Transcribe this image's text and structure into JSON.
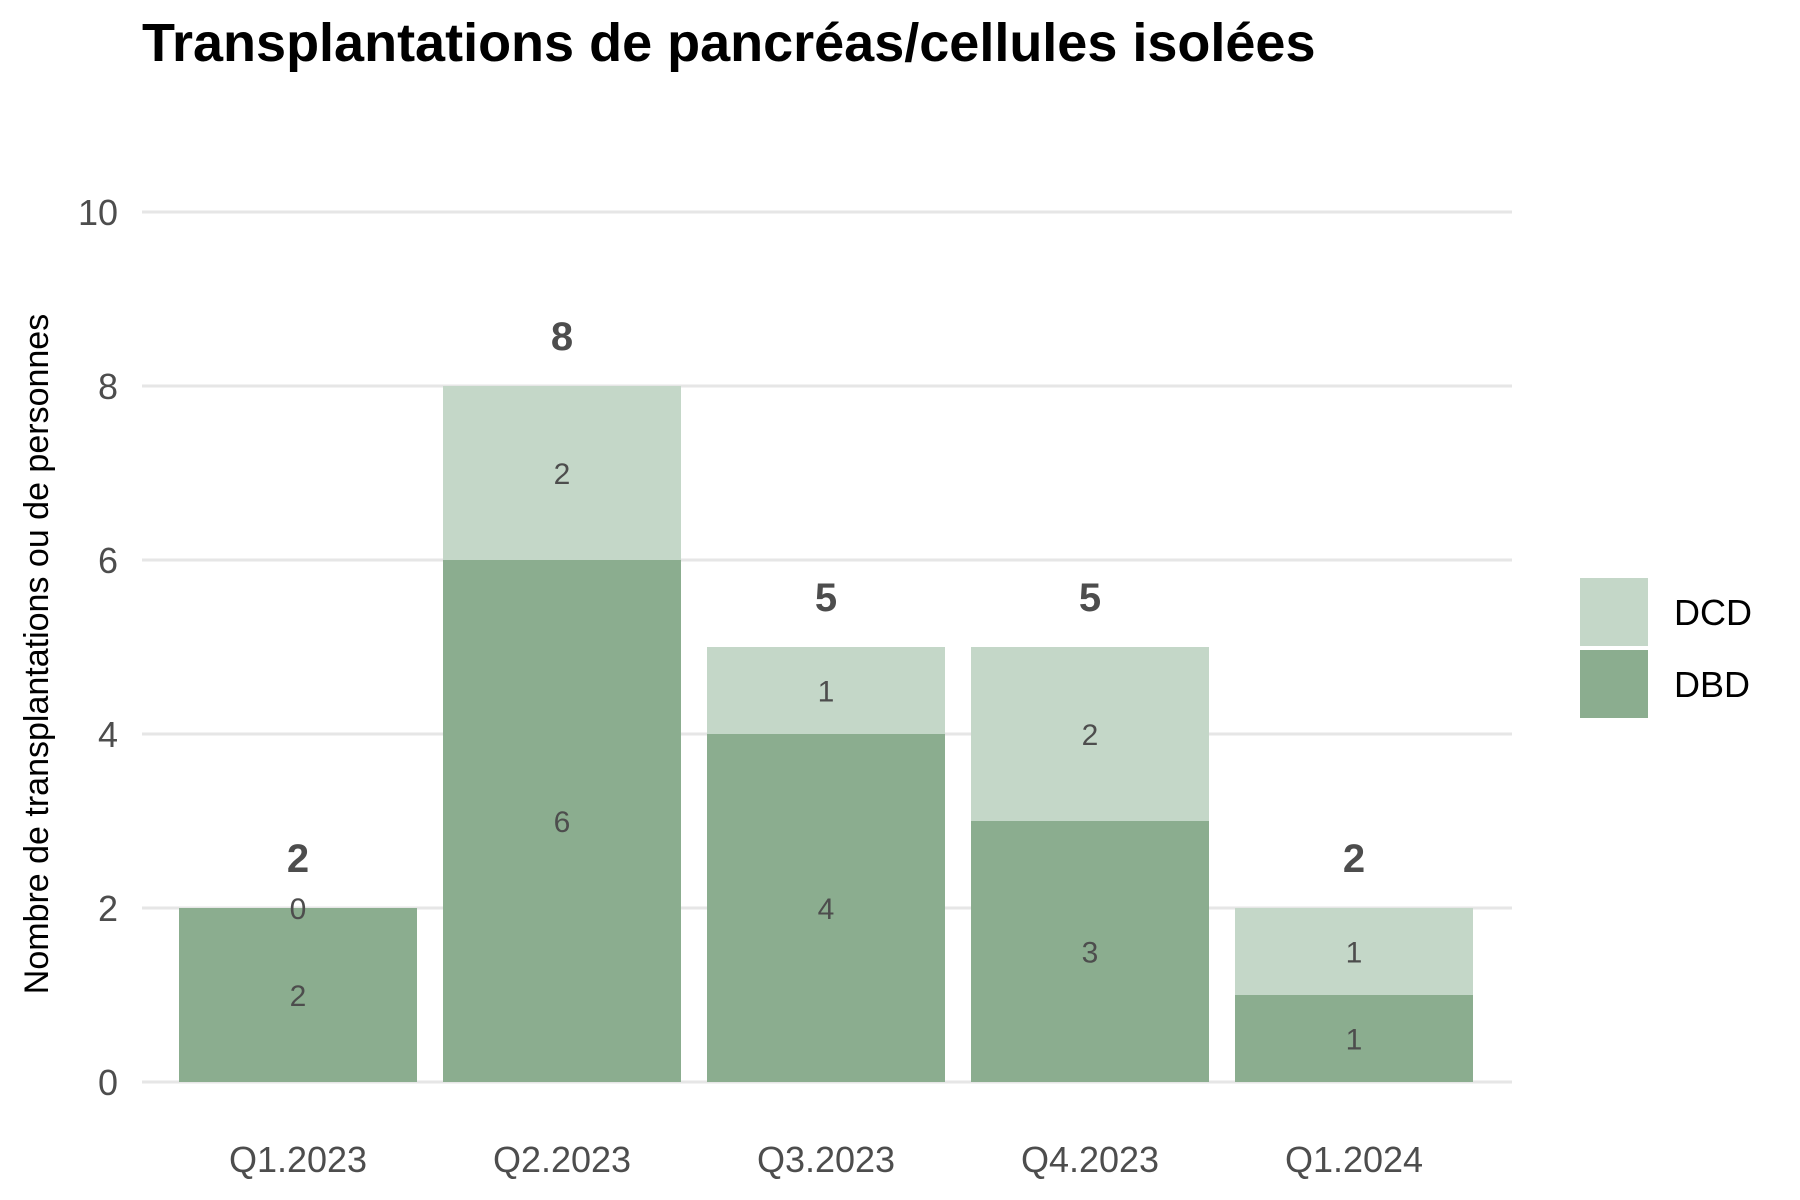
{
  "chart_data": {
    "type": "bar",
    "stacked": true,
    "title": "Transplantations de pancréas/cellules isolées",
    "xlabel": "",
    "ylabel": "Nombre de transplantations ou de personnes",
    "ylim": [
      0,
      10
    ],
    "yticks": [
      0,
      2,
      4,
      6,
      8,
      10
    ],
    "grid": true,
    "legend_position": "right",
    "categories": [
      "Q1.2023",
      "Q2.2023",
      "Q3.2023",
      "Q4.2023",
      "Q1.2024"
    ],
    "series": [
      {
        "name": "DBD",
        "values": [
          2,
          6,
          4,
          3,
          1
        ],
        "color": "#8bad8f"
      },
      {
        "name": "DCD",
        "values": [
          0,
          2,
          1,
          2,
          1
        ],
        "color": "#c4d7c8"
      }
    ],
    "totals": [
      2,
      8,
      5,
      5,
      2
    ],
    "legend": [
      {
        "name": "DCD",
        "color": "#c4d7c8"
      },
      {
        "name": "DBD",
        "color": "#8bad8f"
      }
    ]
  }
}
